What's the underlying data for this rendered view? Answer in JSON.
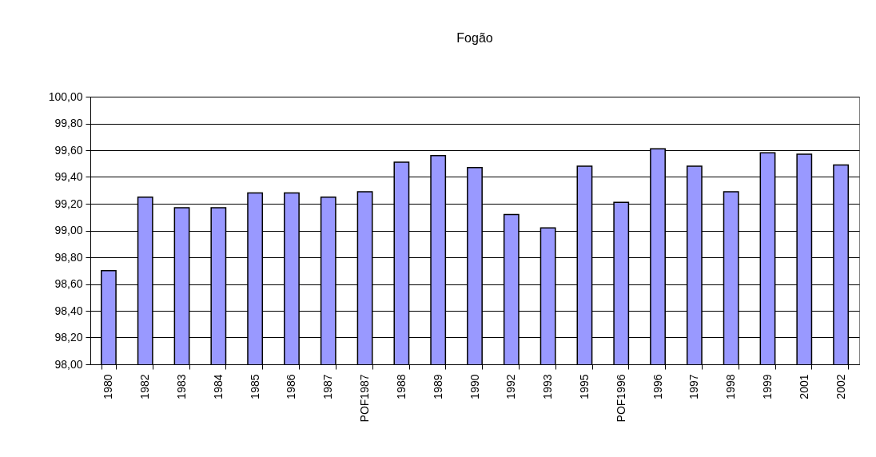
{
  "chart_data": {
    "type": "bar",
    "title": "Fogão",
    "categories": [
      "1980",
      "1982",
      "1983",
      "1984",
      "1985",
      "1986",
      "1987",
      "POF1987",
      "1988",
      "1989",
      "1990",
      "1992",
      "1993",
      "1995",
      "POF1996",
      "1996",
      "1997",
      "1998",
      "1999",
      "2001",
      "2002"
    ],
    "values": [
      98.7,
      99.25,
      99.17,
      99.17,
      99.28,
      99.28,
      99.25,
      99.29,
      99.51,
      99.56,
      99.47,
      99.12,
      99.02,
      99.48,
      99.21,
      99.61,
      99.48,
      99.29,
      99.58,
      99.57,
      99.49
    ],
    "color": "#9999ff",
    "ylim": [
      98,
      100
    ],
    "yticks": [
      {
        "value": 98,
        "label": "98,00"
      },
      {
        "value": 98.2,
        "label": "98,20"
      },
      {
        "value": 98.4,
        "label": "98,40"
      },
      {
        "value": 98.6,
        "label": "98,60"
      },
      {
        "value": 98.8,
        "label": "98,80"
      },
      {
        "value": 99,
        "label": "99,00"
      },
      {
        "value": 99.2,
        "label": "99,20"
      },
      {
        "value": 99.4,
        "label": "99,40"
      },
      {
        "value": 99.6,
        "label": "99,60"
      },
      {
        "value": 99.8,
        "label": "99,80"
      },
      {
        "value": 100,
        "label": "100,00"
      }
    ],
    "grid": "y"
  }
}
